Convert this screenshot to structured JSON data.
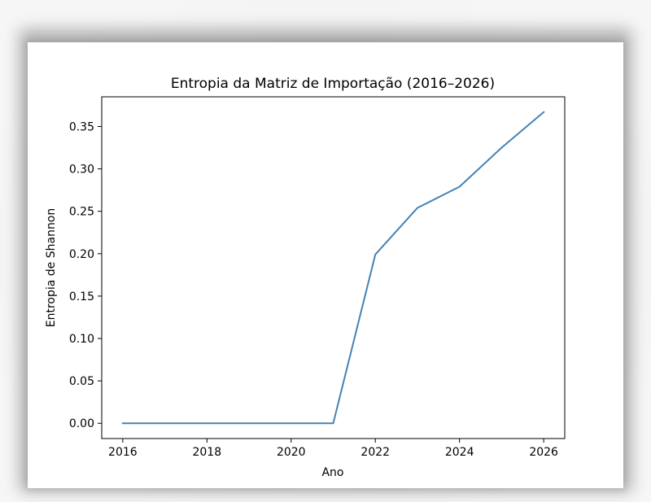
{
  "chart_data": {
    "type": "line",
    "title": "Entropia da Matriz de Importação (2016–2026)",
    "xlabel": "Ano",
    "ylabel": "Entropia de Shannon",
    "xlim": [
      2015.5,
      2026.5
    ],
    "ylim": [
      -0.018,
      0.385
    ],
    "x_ticks": [
      2016,
      2018,
      2020,
      2022,
      2024,
      2026
    ],
    "x_tick_labels": [
      "2016",
      "2018",
      "2020",
      "2022",
      "2024",
      "2026"
    ],
    "y_ticks": [
      0.0,
      0.05,
      0.1,
      0.15,
      0.2,
      0.25,
      0.3,
      0.35
    ],
    "y_tick_labels": [
      "0.00",
      "0.05",
      "0.10",
      "0.15",
      "0.20",
      "0.25",
      "0.30",
      "0.35"
    ],
    "grid": false,
    "series": [
      {
        "color": "#4682b4",
        "x": [
          2016,
          2017,
          2018,
          2019,
          2020,
          2021,
          2022,
          2023,
          2024,
          2025,
          2026
        ],
        "y": [
          0.0,
          0.0,
          0.0,
          0.0,
          0.0,
          0.0,
          0.199,
          0.254,
          0.279,
          0.325,
          0.367
        ]
      }
    ]
  }
}
